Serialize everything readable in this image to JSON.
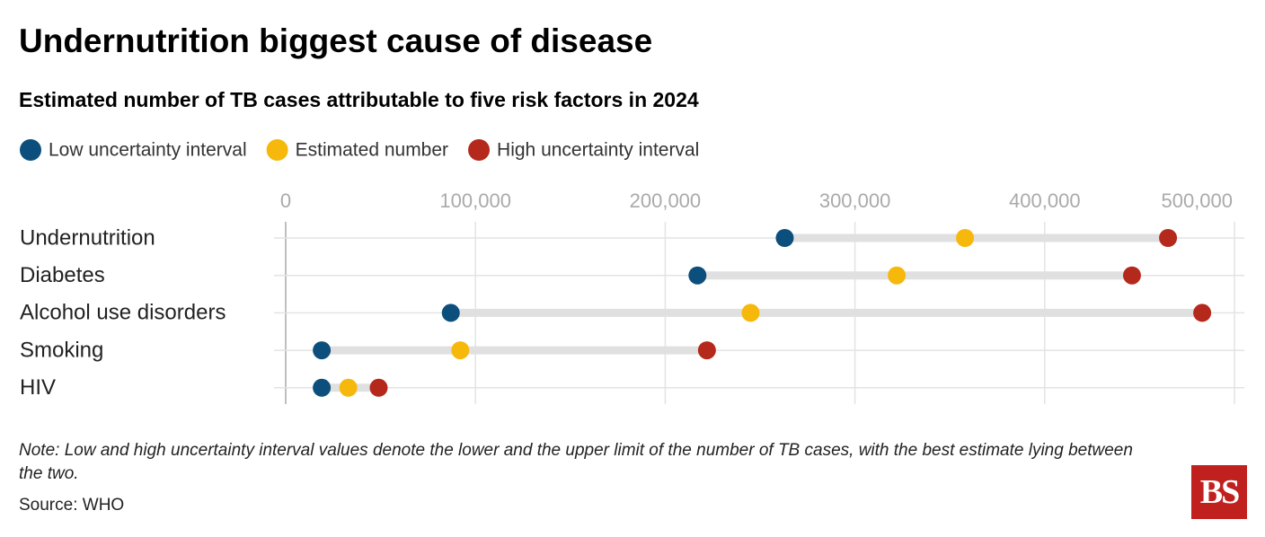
{
  "chart_data": {
    "type": "dot",
    "title": "Undernutrition biggest cause of disease",
    "subtitle": "Estimated number of TB cases attributable to five risk factors in 2024",
    "categories": [
      "Undernutrition",
      "Diabetes",
      "Alcohol use disorders",
      "Smoking",
      "HIV"
    ],
    "series": [
      {
        "name": "Low uncertainty interval",
        "color": "#0d4f7c",
        "values": [
          263000,
          217000,
          87000,
          19000,
          19000
        ]
      },
      {
        "name": "Estimated number",
        "color": "#f7b80c",
        "values": [
          358000,
          322000,
          245000,
          92000,
          33000
        ]
      },
      {
        "name": "High uncertainty interval",
        "color": "#b5281c",
        "values": [
          465000,
          446000,
          483000,
          222000,
          49000
        ]
      }
    ],
    "xlim": [
      0,
      500000
    ],
    "xticks": [
      0,
      {
        "value": 100000,
        "label": "100,000"
      },
      {
        "value": 200000,
        "label": "200,000"
      },
      {
        "value": 300000,
        "label": "300,000"
      },
      {
        "value": 400000,
        "label": "400,000"
      },
      {
        "value": 500000,
        "label": "500,000"
      }
    ],
    "grid": true,
    "note": "Note: Low and high uncertainty interval values denote the lower and the upper limit of the number of TB cases, with the best estimate lying between the two.",
    "source": "Source: WHO",
    "logo": "BS"
  }
}
